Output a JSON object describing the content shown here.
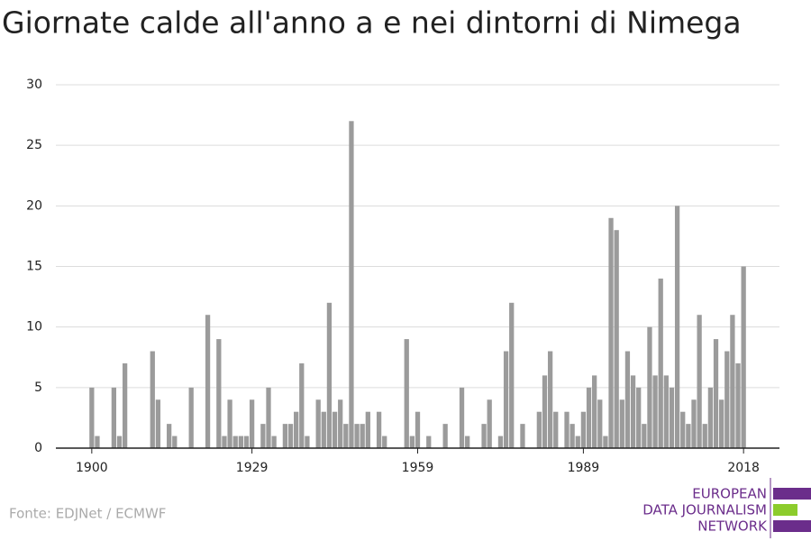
{
  "chart_data": {
    "type": "bar",
    "title": "Giornate calde all'anno a e nei dintorni di Nimega",
    "source": "Fonte: EDJNet / ECMWF",
    "logo": [
      "EUROPEAN",
      "DATA JOURNALISM",
      "NETWORK"
    ],
    "color": "#9b9b9b",
    "x": [
      1900,
      1901,
      1902,
      1903,
      1904,
      1905,
      1906,
      1907,
      1908,
      1909,
      1910,
      1911,
      1912,
      1913,
      1914,
      1915,
      1916,
      1917,
      1918,
      1919,
      1920,
      1921,
      1922,
      1923,
      1924,
      1925,
      1926,
      1927,
      1928,
      1929,
      1930,
      1931,
      1932,
      1933,
      1934,
      1935,
      1936,
      1937,
      1938,
      1939,
      1940,
      1941,
      1942,
      1943,
      1944,
      1945,
      1946,
      1947,
      1948,
      1949,
      1950,
      1951,
      1952,
      1953,
      1954,
      1955,
      1956,
      1957,
      1958,
      1959,
      1960,
      1961,
      1962,
      1963,
      1964,
      1965,
      1966,
      1967,
      1968,
      1969,
      1970,
      1971,
      1972,
      1973,
      1974,
      1975,
      1976,
      1977,
      1978,
      1979,
      1980,
      1981,
      1982,
      1983,
      1984,
      1985,
      1986,
      1987,
      1988,
      1989,
      1990,
      1991,
      1992,
      1993,
      1994,
      1995,
      1996,
      1997,
      1998,
      1999,
      2000,
      2001,
      2002,
      2003,
      2004,
      2005,
      2006,
      2007,
      2008,
      2009,
      2010,
      2011,
      2012,
      2013,
      2014,
      2015,
      2016,
      2017,
      2018
    ],
    "values": [
      5,
      1,
      0,
      0,
      5,
      1,
      7,
      0,
      0,
      0,
      0,
      8,
      4,
      0,
      2,
      1,
      0,
      0,
      5,
      0,
      0,
      11,
      0,
      9,
      1,
      4,
      1,
      1,
      1,
      4,
      0,
      2,
      5,
      1,
      0,
      2,
      2,
      3,
      7,
      1,
      0,
      4,
      3,
      12,
      3,
      4,
      2,
      27,
      2,
      2,
      3,
      0,
      3,
      1,
      0,
      0,
      0,
      9,
      1,
      3,
      0,
      1,
      0,
      0,
      2,
      0,
      0,
      5,
      1,
      0,
      0,
      2,
      4,
      0,
      1,
      8,
      12,
      0,
      2,
      0,
      0,
      3,
      6,
      8,
      3,
      0,
      3,
      2,
      1,
      3,
      5,
      6,
      4,
      1,
      19,
      18,
      4,
      8,
      6,
      5,
      2,
      10,
      6,
      14,
      6,
      5,
      20,
      3,
      2,
      4,
      11,
      2,
      5,
      9,
      4,
      8,
      11,
      7,
      15
    ],
    "xlim": [
      1893.5,
      2024.5
    ],
    "xticks": [
      1900,
      1929,
      1959,
      1989,
      2018
    ],
    "ylim": [
      0,
      30
    ],
    "yticks": [
      0,
      5,
      10,
      15,
      20,
      25,
      30
    ],
    "grid": true
  }
}
